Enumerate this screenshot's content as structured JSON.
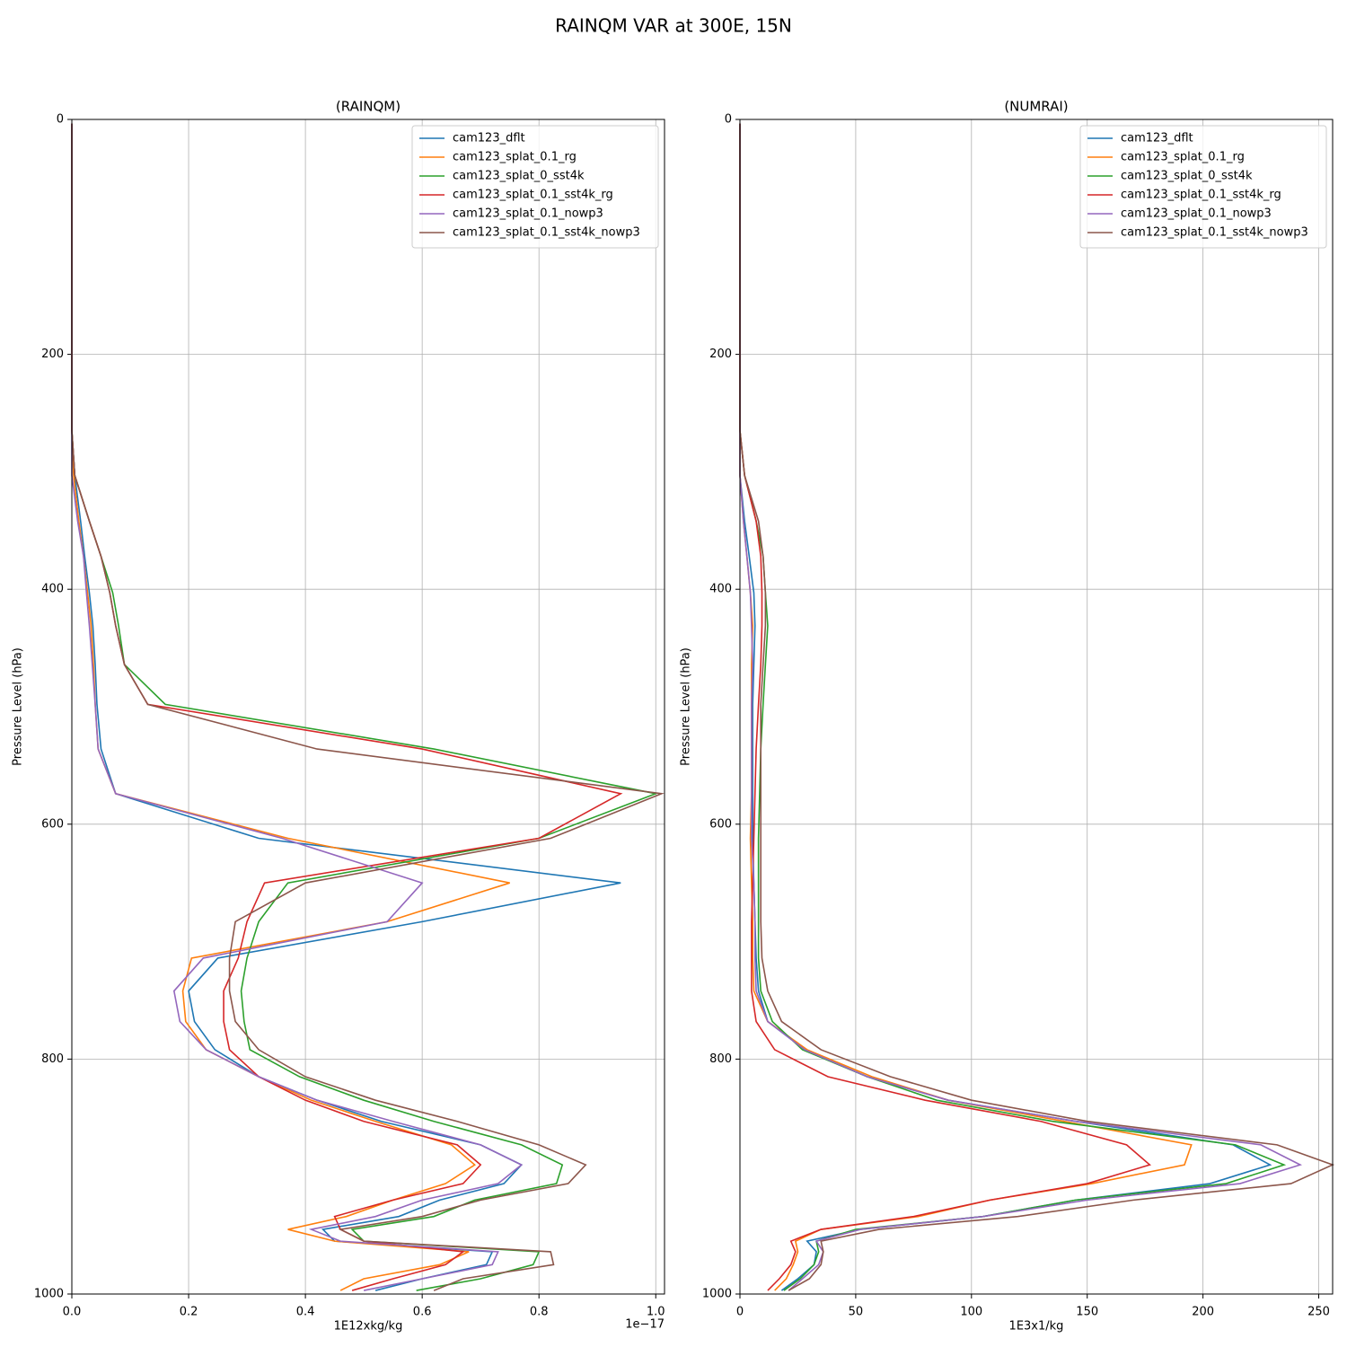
{
  "title": "RAINQM VAR at 300E, 15N",
  "chart_data": [
    {
      "type": "line",
      "title": "(RAINQM)",
      "xlabel": "1E12xkg/kg",
      "ylabel": "Pressure Level (hPa)",
      "x_offset_label": "1e−17",
      "grid": true,
      "legend": "upper right",
      "xlim": [
        0,
        1.015
      ],
      "xticks": [
        {
          "value": 0,
          "label": "0.0"
        },
        0.2,
        0.4,
        0.6,
        0.8,
        {
          "value": 1,
          "label": "1.0"
        }
      ],
      "ylim": [
        1000,
        0
      ],
      "yticks": [
        0,
        200,
        400,
        600,
        800,
        1000
      ],
      "y": [
        3.6,
        265,
        303,
        342,
        372,
        403,
        431,
        464,
        498,
        536,
        574,
        612,
        650,
        683,
        714,
        742,
        768,
        792,
        815,
        835,
        853,
        873,
        890,
        906,
        920,
        934,
        945,
        955,
        964,
        975,
        987,
        997
      ],
      "series": [
        {
          "name": "cam123_dflt",
          "color": "#1f77b4",
          "values": [
            0,
            0,
            0.005,
            0.015,
            0.022,
            0.03,
            0.036,
            0.04,
            0.043,
            0.05,
            0.075,
            0.32,
            0.94,
            0.6,
            0.25,
            0.2,
            0.21,
            0.245,
            0.32,
            0.42,
            0.53,
            0.7,
            0.77,
            0.74,
            0.63,
            0.56,
            0.43,
            0.45,
            0.72,
            0.71,
            0.6,
            0.52
          ]
        },
        {
          "name": "cam123_splat_0.1_rg",
          "color": "#ff7f0e",
          "values": [
            0,
            0,
            0.003,
            0.012,
            0.02,
            0.027,
            0.033,
            0.037,
            0.04,
            0.045,
            0.075,
            0.37,
            0.75,
            0.54,
            0.205,
            0.19,
            0.195,
            0.23,
            0.32,
            0.41,
            0.52,
            0.65,
            0.69,
            0.64,
            0.55,
            0.47,
            0.37,
            0.45,
            0.68,
            0.63,
            0.5,
            0.46
          ]
        },
        {
          "name": "cam123_splat_0_sst4k",
          "color": "#2ca02c",
          "values": [
            0,
            0,
            0.005,
            0.03,
            0.05,
            0.07,
            0.08,
            0.09,
            0.16,
            0.62,
            1.0,
            0.8,
            0.37,
            0.32,
            0.3,
            0.29,
            0.295,
            0.305,
            0.39,
            0.5,
            0.62,
            0.77,
            0.84,
            0.83,
            0.69,
            0.62,
            0.48,
            0.5,
            0.8,
            0.79,
            0.7,
            0.59
          ]
        },
        {
          "name": "cam123_splat_0.1_sst4k_rg",
          "color": "#d62728",
          "values": [
            0,
            0,
            0.005,
            0.03,
            0.05,
            0.065,
            0.075,
            0.09,
            0.13,
            0.6,
            0.94,
            0.8,
            0.33,
            0.3,
            0.285,
            0.26,
            0.26,
            0.27,
            0.32,
            0.4,
            0.5,
            0.66,
            0.7,
            0.67,
            0.55,
            0.45,
            0.46,
            0.5,
            0.67,
            0.64,
            0.55,
            0.48
          ]
        },
        {
          "name": "cam123_splat_0.1_nowp3",
          "color": "#9467bd",
          "values": [
            0,
            0,
            0,
            0.01,
            0.02,
            0.025,
            0.03,
            0.035,
            0.04,
            0.045,
            0.075,
            0.36,
            0.6,
            0.54,
            0.225,
            0.175,
            0.185,
            0.23,
            0.32,
            0.42,
            0.55,
            0.7,
            0.77,
            0.73,
            0.6,
            0.52,
            0.41,
            0.46,
            0.73,
            0.72,
            0.6,
            0.5
          ]
        },
        {
          "name": "cam123_splat_0.1_sst4k_nowp3",
          "color": "#8c564b",
          "values": [
            0,
            0,
            0.005,
            0.03,
            0.05,
            0.065,
            0.075,
            0.09,
            0.13,
            0.42,
            1.01,
            0.82,
            0.4,
            0.28,
            0.27,
            0.27,
            0.28,
            0.32,
            0.4,
            0.52,
            0.66,
            0.8,
            0.88,
            0.85,
            0.7,
            0.6,
            0.46,
            0.5,
            0.82,
            0.825,
            0.67,
            0.62
          ]
        }
      ]
    },
    {
      "type": "line",
      "title": "(NUMRAI)",
      "xlabel": "1E3x1/kg",
      "ylabel": "Pressure Level (hPa)",
      "grid": true,
      "legend": "upper right",
      "xlim": [
        0,
        256
      ],
      "xticks": [
        0,
        50,
        100,
        150,
        200,
        250
      ],
      "ylim": [
        1000,
        0
      ],
      "yticks": [
        0,
        200,
        400,
        600,
        800,
        1000
      ],
      "y": [
        3.6,
        265,
        303,
        342,
        372,
        403,
        431,
        464,
        498,
        536,
        574,
        612,
        650,
        683,
        714,
        742,
        768,
        792,
        815,
        835,
        853,
        873,
        890,
        906,
        920,
        934,
        945,
        955,
        964,
        975,
        987,
        997
      ],
      "series": [
        {
          "name": "cam123_dflt",
          "color": "#1f77b4",
          "values": [
            0,
            0,
            0,
            2,
            4,
            6,
            6.5,
            6,
            5.5,
            5.5,
            5.5,
            5.5,
            6,
            6.5,
            7,
            8,
            12,
            28,
            55,
            90,
            145,
            213,
            229,
            203,
            145,
            105,
            52,
            29,
            33,
            32,
            25,
            18
          ]
        },
        {
          "name": "cam123_splat_0.1_rg",
          "color": "#ff7f0e",
          "values": [
            0,
            0,
            0,
            1.5,
            3,
            4.5,
            5.5,
            5,
            5,
            5,
            5,
            4.5,
            5,
            5.5,
            5.5,
            6,
            12,
            29,
            57,
            90,
            140,
            195,
            192,
            152,
            108,
            77,
            35,
            24,
            25,
            23,
            20,
            15
          ]
        },
        {
          "name": "cam123_splat_0_sst4k",
          "color": "#2ca02c",
          "values": [
            0,
            0,
            2,
            7,
            10,
            11,
            12,
            11,
            10,
            9,
            8.5,
            8,
            8,
            8,
            8,
            9,
            14,
            27,
            55,
            85,
            135,
            214,
            235,
            210,
            145,
            105,
            50,
            33,
            34,
            32,
            26,
            19
          ]
        },
        {
          "name": "cam123_splat_0.1_sst4k_rg",
          "color": "#d62728",
          "values": [
            0,
            0,
            2,
            7,
            9,
            9.5,
            9.5,
            9,
            8,
            7,
            6.5,
            6,
            5.5,
            5,
            5,
            5,
            7,
            15,
            38,
            80,
            130,
            167,
            177,
            150,
            108,
            75,
            35,
            22,
            24,
            22,
            17,
            12
          ]
        },
        {
          "name": "cam123_splat_0.1_nowp3",
          "color": "#9467bd",
          "values": [
            0,
            0,
            0,
            1.5,
            3,
            4.5,
            5,
            5.5,
            5,
            5,
            5,
            5,
            6,
            6.5,
            6.5,
            7,
            12,
            28,
            55,
            90,
            145,
            225,
            242,
            216,
            150,
            105,
            52,
            33,
            36,
            34,
            27,
            21
          ]
        },
        {
          "name": "cam123_splat_0.1_sst4k_nowp3",
          "color": "#8c564b",
          "values": [
            0,
            0,
            2,
            8,
            10,
            11,
            11,
            10,
            9,
            9,
            9,
            9,
            9,
            9,
            9.5,
            12,
            18,
            35,
            65,
            100,
            150,
            232,
            256,
            238,
            170,
            120,
            60,
            35,
            36,
            35,
            30,
            21
          ]
        }
      ]
    }
  ]
}
